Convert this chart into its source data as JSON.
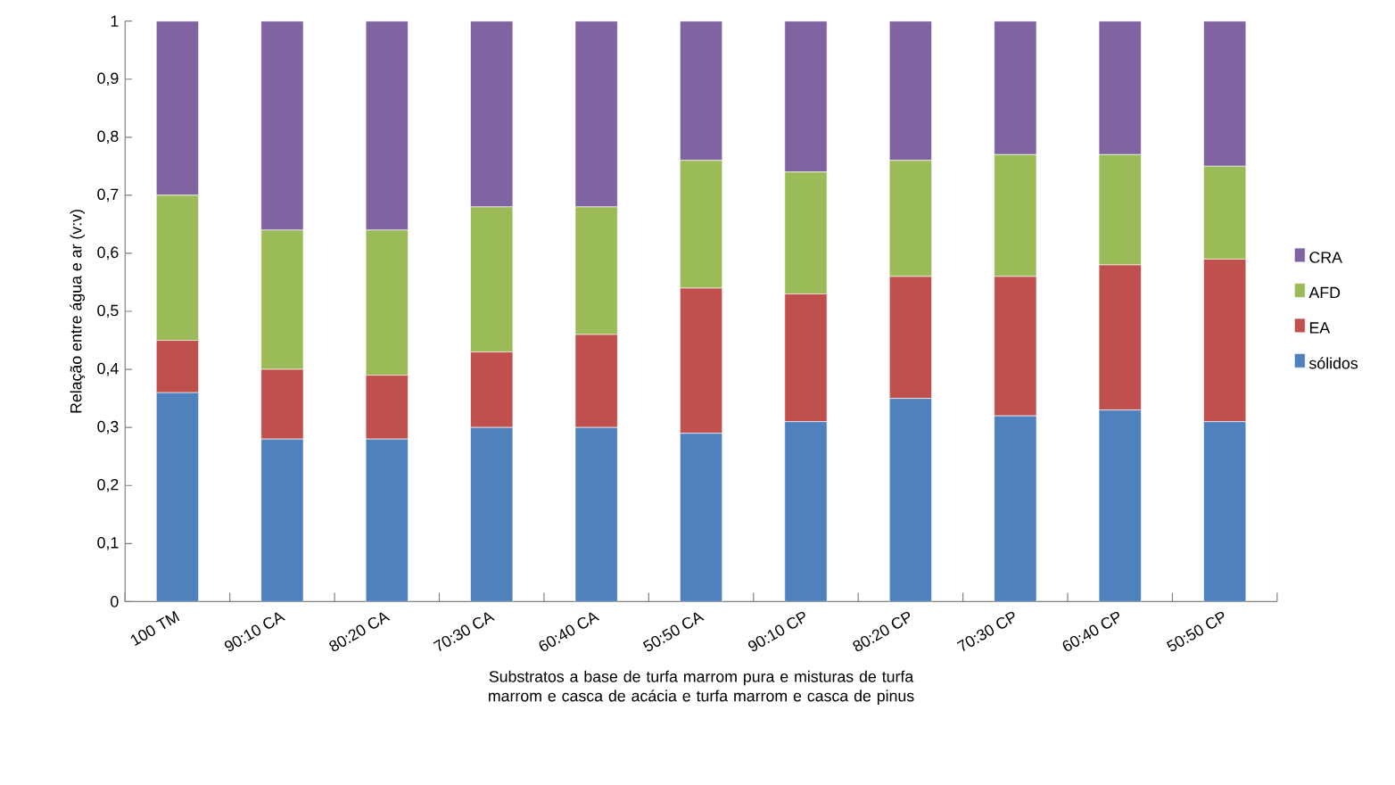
{
  "chart_data": {
    "type": "bar",
    "stacked": true,
    "xlabel": "Substratos  a base de  turfa marrom pura e misturas de turfa marrom e casca de acácia e turfa  marrom e casca de pinus",
    "ylabel": "Relação entre água e ar (v:v)",
    "categories": [
      "100 TM",
      "90:10 CA",
      "80:20 CA",
      "70:30 CA",
      "60:40 CA",
      "50:50 CA",
      "90:10 CP",
      "80:20 CP",
      "70:30 CP",
      "60:40 CP",
      "50:50 CP"
    ],
    "series": [
      {
        "name": "sólidos",
        "color": "#4f81bd",
        "values": [
          0.36,
          0.28,
          0.28,
          0.3,
          0.3,
          0.29,
          0.31,
          0.35,
          0.32,
          0.33,
          0.31
        ]
      },
      {
        "name": "EA",
        "color": "#c0504d",
        "values": [
          0.09,
          0.12,
          0.11,
          0.13,
          0.16,
          0.25,
          0.22,
          0.21,
          0.24,
          0.25,
          0.28
        ]
      },
      {
        "name": "AFD",
        "color": "#9bbb59",
        "values": [
          0.25,
          0.24,
          0.25,
          0.25,
          0.22,
          0.22,
          0.21,
          0.2,
          0.21,
          0.19,
          0.16
        ]
      },
      {
        "name": "CRA",
        "color": "#8064a2",
        "values": [
          0.3,
          0.36,
          0.36,
          0.32,
          0.32,
          0.24,
          0.26,
          0.24,
          0.23,
          0.23,
          0.25
        ]
      }
    ],
    "ylim": [
      0,
      1
    ],
    "yticks": [
      0,
      {
        "value": 0.1,
        "label": "0,1"
      },
      {
        "value": 0.2,
        "label": "0,2"
      },
      {
        "value": 0.3,
        "label": "0,3"
      },
      {
        "value": 0.4,
        "label": "0,4"
      },
      {
        "value": 0.5,
        "label": "0,5"
      },
      {
        "value": 0.6,
        "label": "0,6"
      },
      {
        "value": 0.7,
        "label": "0,7"
      },
      {
        "value": 0.8,
        "label": "0,8"
      },
      {
        "value": 0.9,
        "label": "0,9"
      },
      1
    ],
    "legend": "right"
  }
}
